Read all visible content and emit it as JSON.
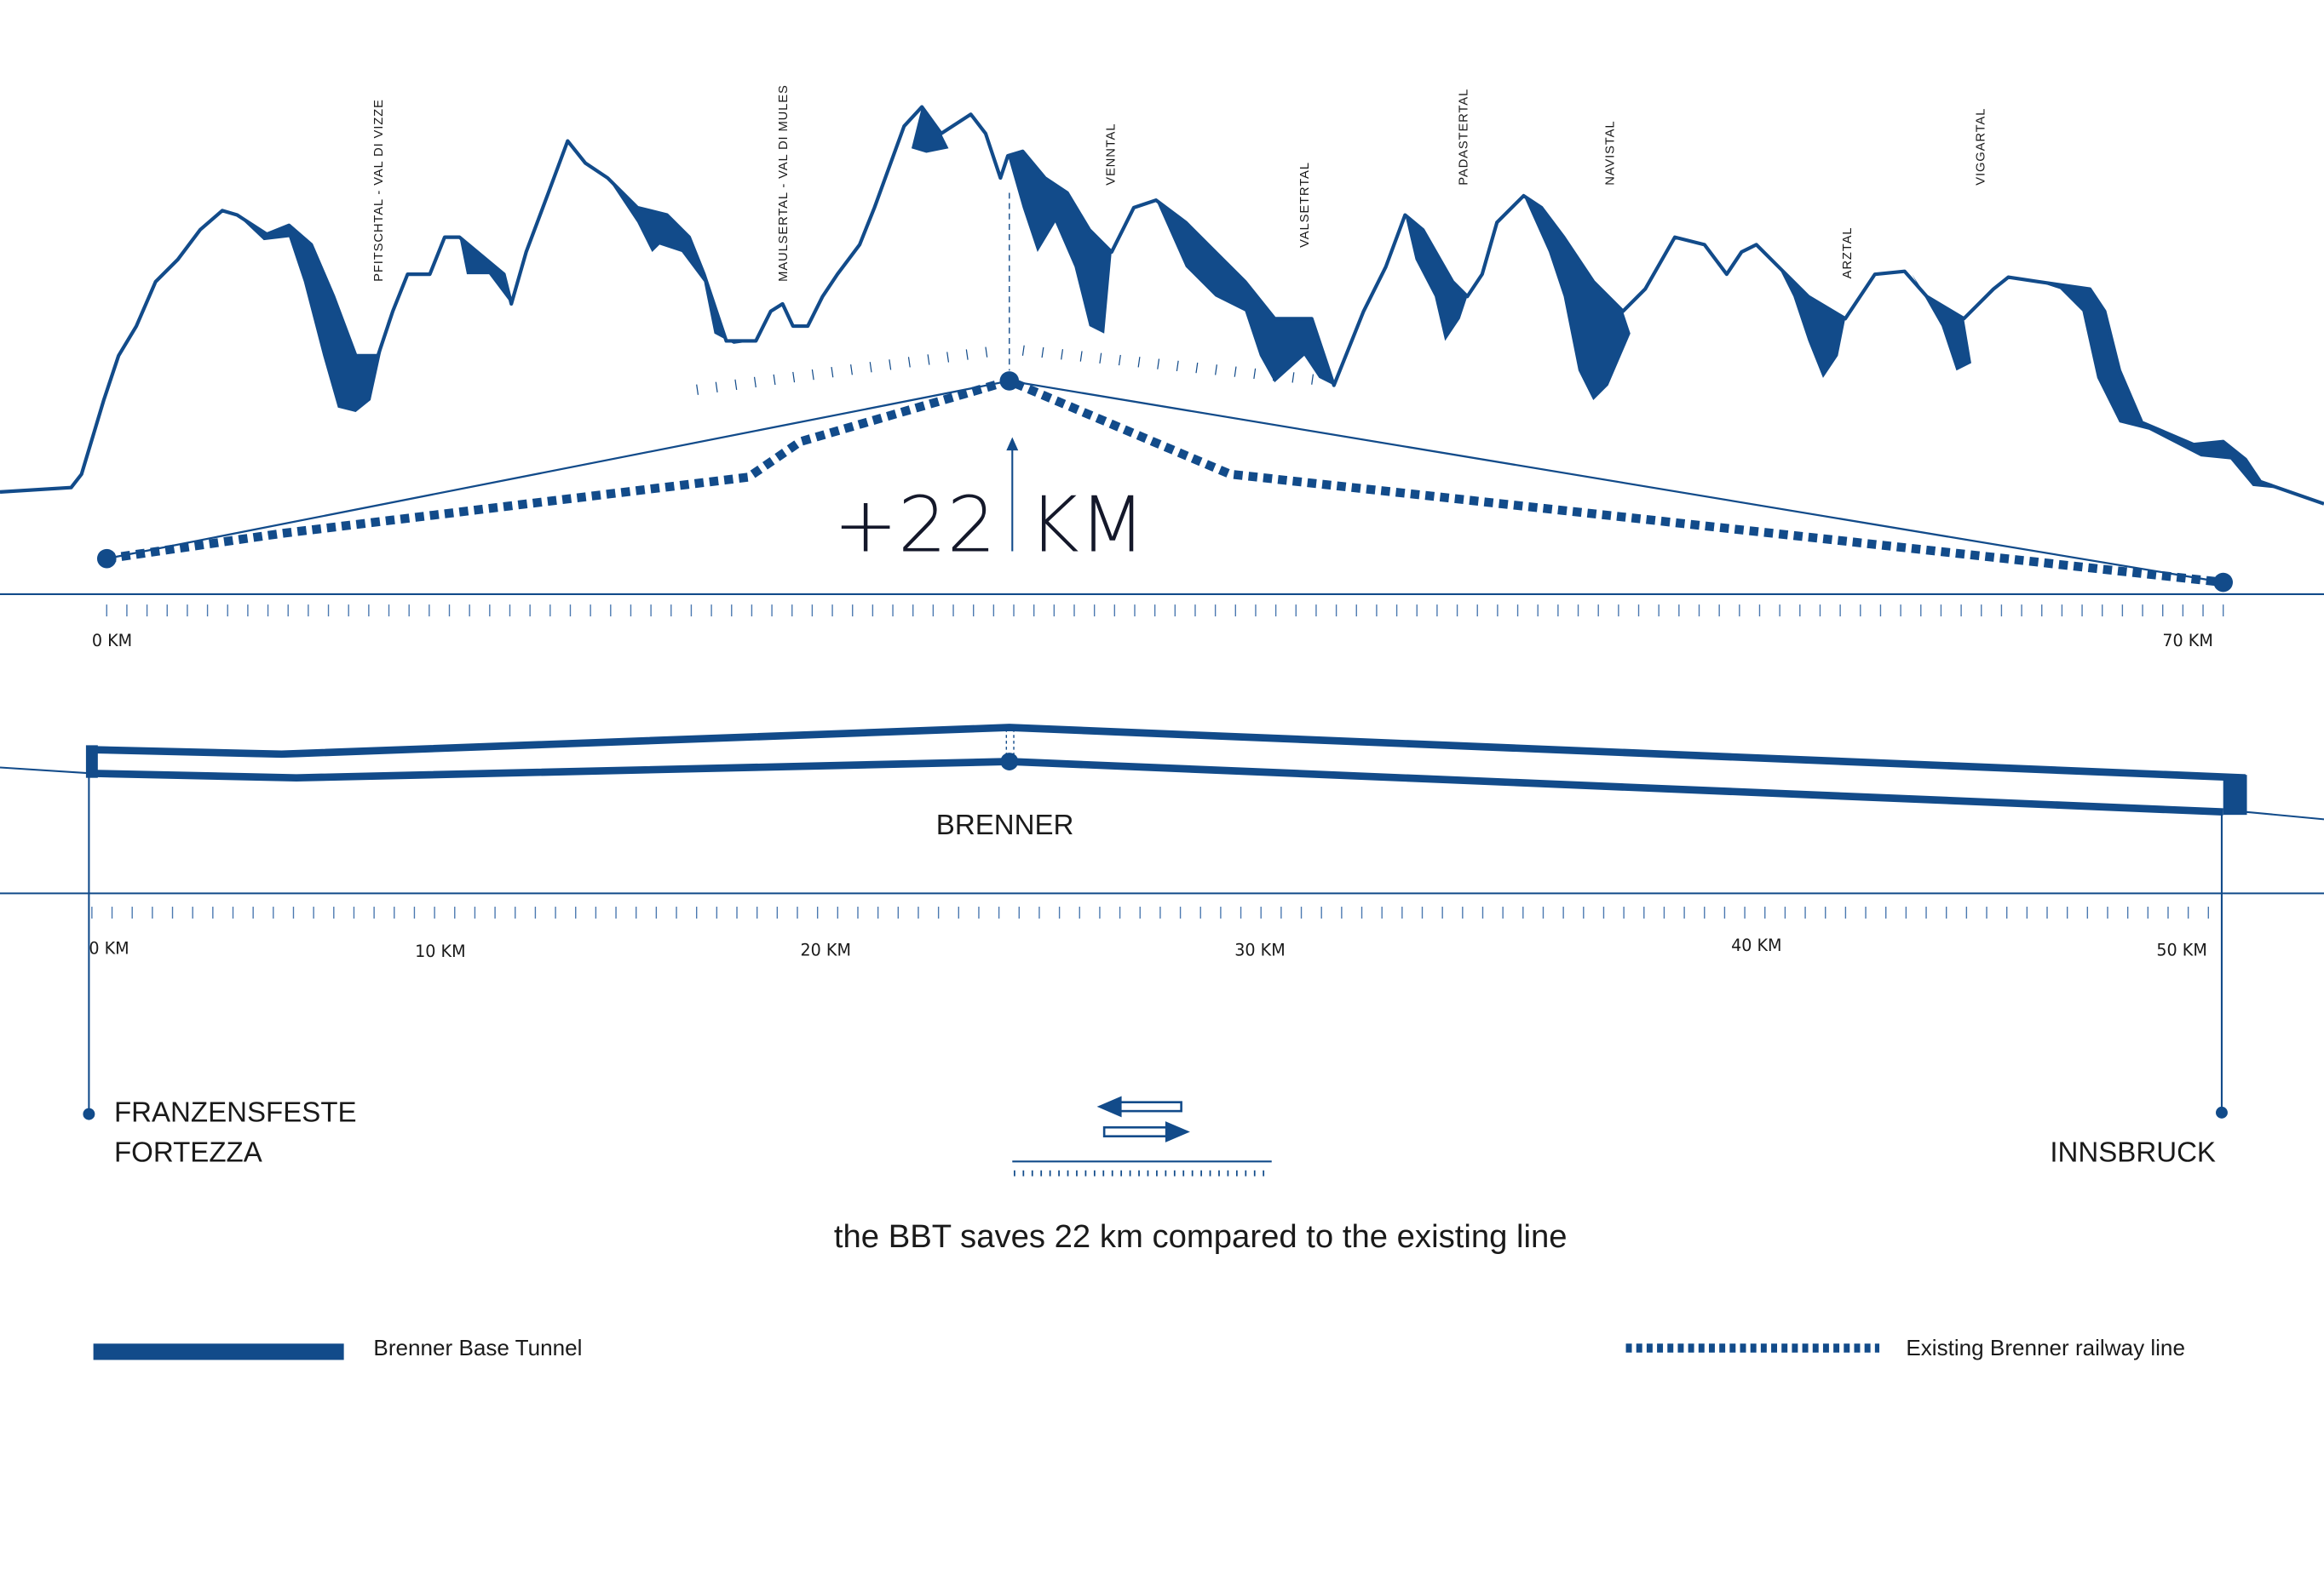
{
  "colors": {
    "primary": "#124b8a",
    "text": "#1a1a1a"
  },
  "valleys": [
    "PFITSCHTAL - VAL DI VIZZE",
    "MAULSERTAL - VAL DI MULES",
    "VENNTAL",
    "VALSETRTAL",
    "PADASTERTAL",
    "NAVISTAL",
    "ARZTAL",
    "VIGGARTAL"
  ],
  "upper_diagram": {
    "difference_label": "+22",
    "difference_unit": "KM",
    "axis_labels": [
      "0 KM",
      "70 KM"
    ]
  },
  "lower_diagram": {
    "summit_label": "BRENNER",
    "axis_labels": [
      "0 KM",
      "10 KM",
      "20 KM",
      "30 KM",
      "40 KM",
      "50 KM"
    ],
    "start_station": [
      "FRANZENSFESTE",
      "FORTEZZA"
    ],
    "end_station": "INNSBRUCK"
  },
  "caption": "the BBT saves 22 km compared to the existing line",
  "legend": {
    "tunnel": "Brenner Base Tunnel",
    "existing": "Existing Brenner railway line"
  }
}
